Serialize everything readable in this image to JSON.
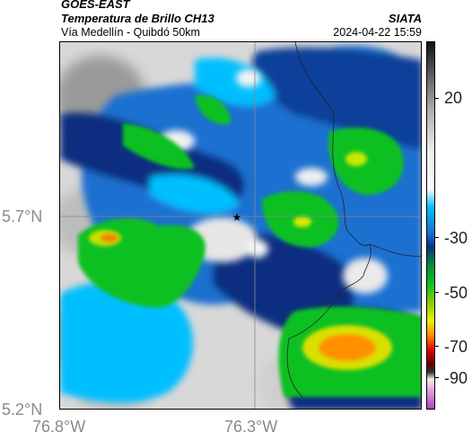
{
  "header": {
    "satellite": "GOES-EAST",
    "product": "Temperatura de Brillo CH13",
    "organization": "SIATA",
    "subtitle": "Vía Medellín - Quibdó 50km",
    "datetime": "2024-04-22 15:59"
  },
  "map": {
    "lat_ticks": [
      "5.7°N",
      "5.2°N"
    ],
    "lon_ticks": [
      "76.8°W",
      "76.3°W"
    ],
    "marker_icon": "star-icon"
  },
  "colorbar": {
    "ticks": [
      "20",
      "-30",
      "-50",
      "-70",
      "-90"
    ],
    "colors": {
      "warm_gray": "#e8e8e8",
      "cyan": "#00bfff",
      "blue": "#0a2f80",
      "green": "#10c020",
      "yellow": "#f0f000",
      "orange": "#ff8c00",
      "red": "#e00000",
      "magenta": "#b040c0"
    }
  }
}
